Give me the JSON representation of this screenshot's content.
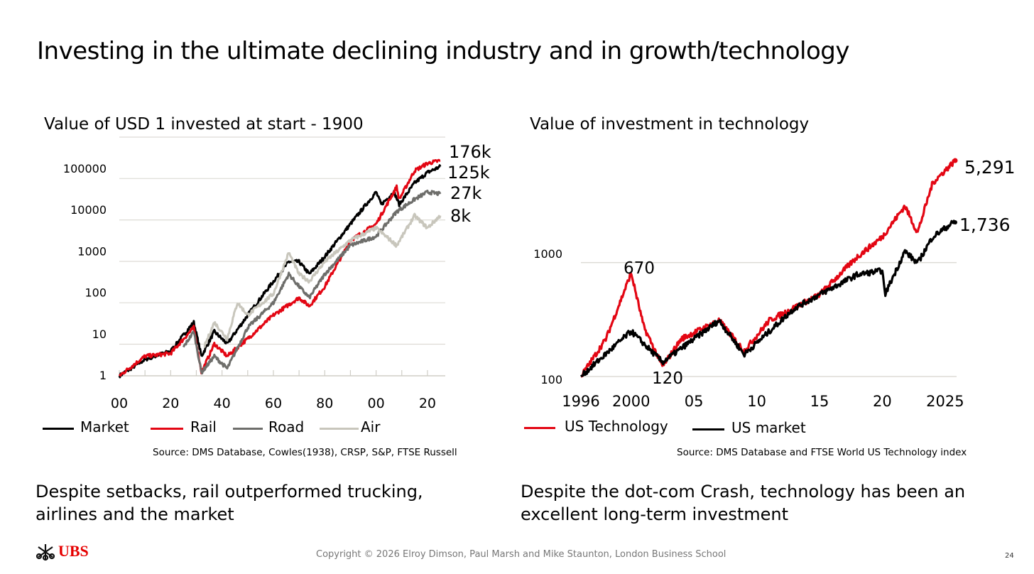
{
  "title": "Investing in the ultimate declining industry and in growth/technology",
  "footer": {
    "copyright": "Copyright © 2026 Elroy Dimson, Paul Marsh and Mike Staunton, London Business School",
    "page": "24",
    "logo": "UBS"
  },
  "colors": {
    "red": "#e30613",
    "black": "#000000",
    "road": "#6e6e6b",
    "air": "#c8c6bc",
    "grid": "#dddbd5"
  },
  "chart_data": [
    {
      "type": "line",
      "title": "Value of USD 1 invested at start - 1900",
      "yscale": "log",
      "ylim": [
        1,
        300000
      ],
      "yticks": [
        "1",
        "10",
        "100",
        "1000",
        "10000",
        "100000"
      ],
      "ytick_values": [
        1,
        10,
        100,
        1000,
        10000,
        100000
      ],
      "xticks": [
        "00",
        "20",
        "40",
        "60",
        "80",
        "00",
        "20"
      ],
      "xtick_values": [
        1900,
        1920,
        1940,
        1960,
        1980,
        2000,
        2020
      ],
      "source": "Source: DMS Database, Cowles(1938), CRSP, S&P, FTSE Russell",
      "caption": [
        "Despite setbacks, rail outperformed trucking,",
        "airlines and the market"
      ],
      "series": [
        {
          "name": "Market",
          "color": "#000000",
          "end_label": "125k",
          "x": [
            1900,
            1910,
            1920,
            1929,
            1932,
            1937,
            1942,
            1950,
            1960,
            1966,
            1970,
            1974,
            1980,
            1990,
            2000,
            2002,
            2007,
            2009,
            2015,
            2020,
            2025
          ],
          "y": [
            1,
            2.5,
            4,
            20,
            3,
            12,
            6,
            30,
            200,
            600,
            600,
            300,
            800,
            5000,
            30000,
            15000,
            30000,
            15000,
            50000,
            90000,
            125000
          ]
        },
        {
          "name": "Rail",
          "color": "#e30613",
          "end_label": "176k",
          "x": [
            1900,
            1910,
            1920,
            1929,
            1932,
            1937,
            1942,
            1950,
            1960,
            1970,
            1974,
            1980,
            1990,
            2000,
            2008,
            2009,
            2015,
            2020,
            2025
          ],
          "y": [
            1,
            3,
            3.5,
            15,
            1.2,
            6,
            3,
            8,
            30,
            80,
            50,
            150,
            2000,
            5000,
            40000,
            20000,
            100000,
            150000,
            176000
          ]
        },
        {
          "name": "Road",
          "color": "#6e6e6b",
          "end_label": "27k",
          "x": [
            1925,
            1929,
            1932,
            1937,
            1942,
            1950,
            1960,
            1966,
            1970,
            1974,
            1980,
            1990,
            2000,
            2008,
            2015,
            2020,
            2025
          ],
          "y": [
            5,
            12,
            1.2,
            3,
            1.5,
            15,
            60,
            300,
            150,
            80,
            300,
            1500,
            2500,
            10000,
            20000,
            30000,
            27000
          ]
        },
        {
          "name": "Air",
          "color": "#c8c6bc",
          "end_label": "8k",
          "x": [
            1933,
            1937,
            1942,
            1946,
            1950,
            1960,
            1966,
            1970,
            1974,
            1980,
            1990,
            2000,
            2008,
            2015,
            2020,
            2025
          ],
          "y": [
            5,
            20,
            8,
            60,
            30,
            100,
            1000,
            300,
            200,
            600,
            2000,
            4000,
            1500,
            8000,
            4000,
            8000
          ]
        }
      ]
    },
    {
      "type": "line",
      "title": "Value of investment in technology",
      "yscale": "log",
      "ylim": [
        100,
        6000
      ],
      "yticks": [
        "100",
        "1000"
      ],
      "ytick_values": [
        100,
        1000
      ],
      "xticks": [
        "1996",
        "2000",
        "05",
        "10",
        "15",
        "20",
        "2025"
      ],
      "xtick_values": [
        1996,
        2000,
        2005,
        2010,
        2015,
        2020,
        2025
      ],
      "annotations": [
        {
          "text": "670",
          "x": 2000,
          "y": 670
        },
        {
          "text": "120",
          "x": 2002.5,
          "y": 120
        }
      ],
      "source": "Source: DMS Database and FTSE World US Technology index",
      "caption": [
        "Despite the dot-com Crash, technology has been an",
        "excellent long-term investment"
      ],
      "series": [
        {
          "name": "US Technology",
          "color": "#e30613",
          "end_label": "5,291",
          "x": [
            1996,
            1998,
            2000,
            2001,
            2002.5,
            2004,
            2007,
            2009,
            2011,
            2015,
            2018,
            2020,
            2021.8,
            2022.8,
            2024,
            2025.8
          ],
          "y": [
            100,
            200,
            670,
            250,
            120,
            200,
            280,
            160,
            280,
            450,
            900,
            1300,
            2300,
            1400,
            3500,
            5291
          ]
        },
        {
          "name": "US market",
          "color": "#000000",
          "end_label": "1,736",
          "x": [
            1996,
            2000,
            2002.5,
            2007,
            2009,
            2013,
            2015,
            2018,
            2020,
            2020.2,
            2021.8,
            2022.8,
            2024,
            2025.8
          ],
          "y": [
            100,
            230,
            130,
            280,
            150,
            350,
            450,
            650,
            700,
            450,
            1000,
            800,
            1300,
            1736
          ]
        }
      ]
    }
  ]
}
